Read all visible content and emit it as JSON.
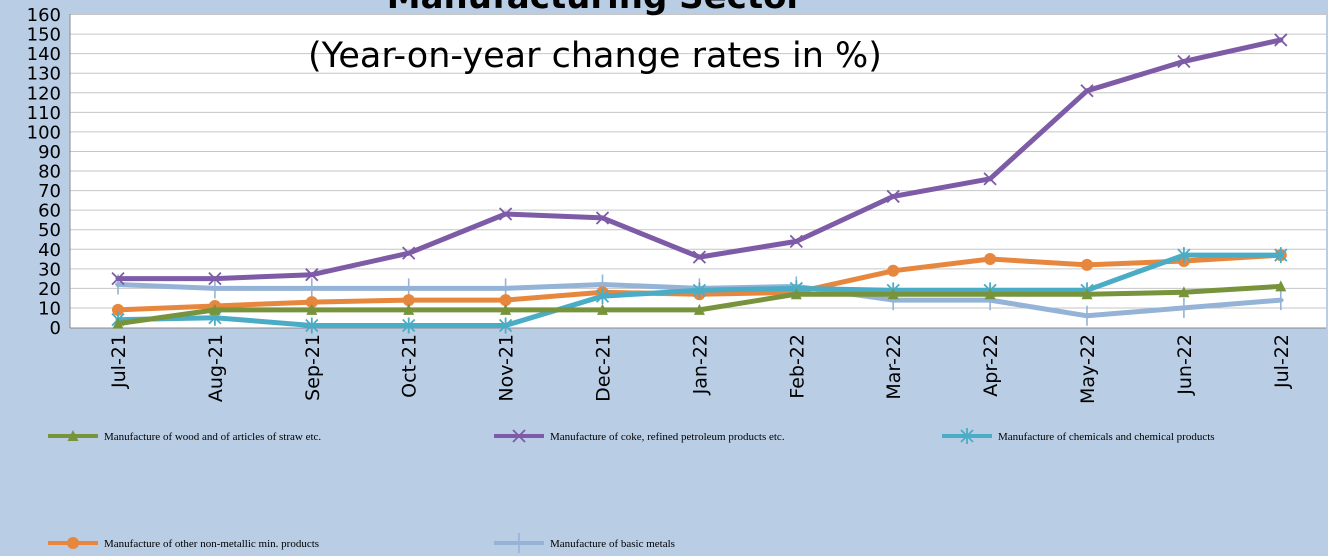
{
  "chart_data": {
    "type": "line",
    "title": "Manufacturing Sector",
    "subtitle": "(Year-on-year change rates in %)",
    "xlabel": "",
    "ylabel": "",
    "ylim": [
      0,
      160
    ],
    "yticks": [
      0,
      10,
      20,
      30,
      40,
      50,
      60,
      70,
      80,
      90,
      100,
      110,
      120,
      130,
      140,
      150,
      160
    ],
    "grid": true,
    "legend_position": "bottom",
    "categories": [
      "Jul-21",
      "Aug-21",
      "Sep-21",
      "Oct-21",
      "Nov-21",
      "Dec-21",
      "Jan-22",
      "Feb-22",
      "Mar-22",
      "Apr-22",
      "May-22",
      "Jun-22",
      "Jul-22"
    ],
    "series": [
      {
        "name": "Manufacture of wood and of articles of straw etc.",
        "color": "#77933c",
        "marker": "triangle",
        "values": [
          2,
          9,
          9,
          9,
          9,
          9,
          9,
          17,
          17,
          17,
          17,
          18,
          21
        ]
      },
      {
        "name": "Manufacture of coke, refined petroleum products etc.",
        "color": "#7d5ba6",
        "marker": "x",
        "values": [
          25,
          25,
          27,
          38,
          58,
          56,
          36,
          44,
          67,
          76,
          121,
          136,
          147
        ]
      },
      {
        "name": "Manufacture of chemicals and chemical products",
        "color": "#4bacc6",
        "marker": "star",
        "values": [
          4,
          5,
          1,
          1,
          1,
          16,
          19,
          20,
          19,
          19,
          19,
          37,
          37
        ]
      },
      {
        "name": "Manufacture of other non-metallic min. products",
        "color": "#e6873d",
        "marker": "circle",
        "values": [
          9,
          11,
          13,
          14,
          14,
          18,
          17,
          18,
          29,
          35,
          32,
          34,
          37
        ]
      },
      {
        "name": "Manufacture of basic metals",
        "color": "#95b3d7",
        "marker": "plus",
        "values": [
          22,
          20,
          20,
          20,
          20,
          22,
          20,
          21,
          14,
          14,
          6,
          10,
          14
        ]
      }
    ]
  }
}
